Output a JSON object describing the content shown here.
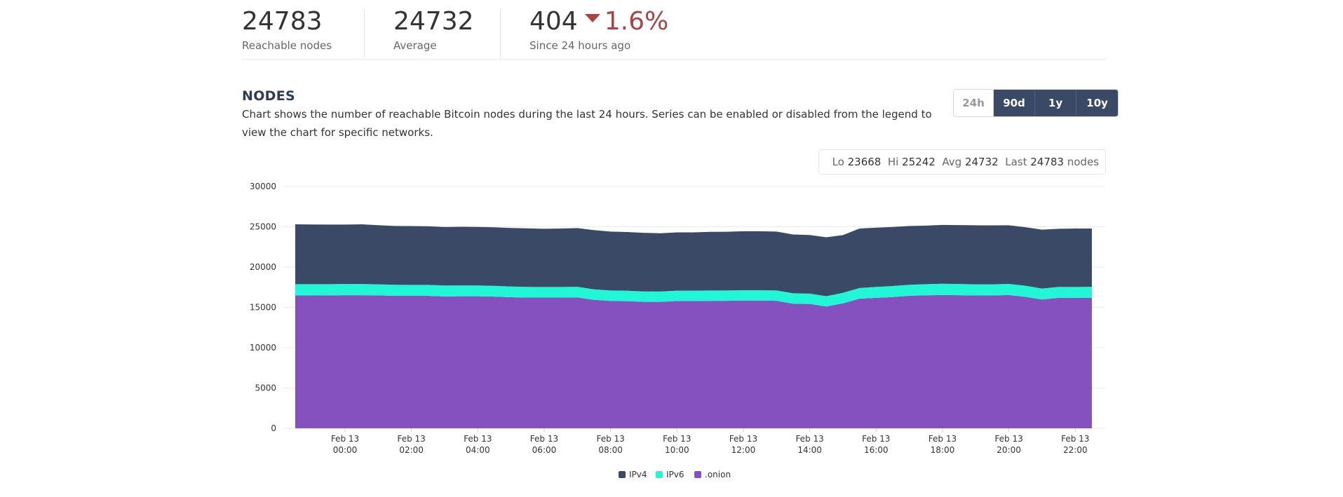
{
  "stats": {
    "reachable": {
      "value": "24783",
      "label": "Reachable nodes"
    },
    "average": {
      "value": "24732",
      "label": "Average"
    },
    "change": {
      "value": "404",
      "percent": "1.6%",
      "direction": "down",
      "label": "Since 24 hours ago"
    }
  },
  "nodes": {
    "title": "NODES",
    "description": "Chart shows the number of reachable Bitcoin nodes during the last 24 hours. Series can be enabled or disabled from the legend to view the chart for specific networks."
  },
  "ranges": [
    {
      "label": "24h",
      "active": false
    },
    {
      "label": "90d",
      "active": true
    },
    {
      "label": "1y",
      "active": true
    },
    {
      "label": "10y",
      "active": true
    }
  ],
  "summary": {
    "lo_label": "Lo",
    "lo": "23668",
    "hi_label": "Hi",
    "hi": "25242",
    "avg_label": "Avg",
    "avg": "24732",
    "last_label": "Last",
    "last": "24783",
    "unit": "nodes"
  },
  "colors": {
    "ipv4": "#3a4966",
    "ipv6": "#21f6d6",
    "onion": "#8551be",
    "trend_down": "#a94442",
    "grid": "#ebebeb"
  },
  "chart_data": {
    "type": "area",
    "stacked": true,
    "title": "",
    "xlabel": "",
    "ylabel": "",
    "ylim": [
      0,
      30000
    ],
    "yticks": [
      0,
      5000,
      10000,
      15000,
      20000,
      25000,
      30000
    ],
    "x_hours": [
      -1.5,
      -1,
      -0.5,
      0,
      0.5,
      1,
      1.5,
      2,
      2.5,
      3,
      3.5,
      4,
      4.5,
      5,
      5.5,
      6,
      6.5,
      7,
      7.5,
      8,
      8.5,
      9,
      9.5,
      10,
      10.5,
      11,
      11.5,
      12,
      12.5,
      13,
      13.5,
      14,
      14.5,
      15,
      15.5,
      16,
      16.5,
      17,
      17.5,
      18,
      18.5,
      19,
      19.5,
      20,
      20.5,
      21,
      21.5,
      22,
      22.5
    ],
    "xticks": [
      {
        "hour": 0,
        "line1": "Feb 13",
        "line2": "00:00"
      },
      {
        "hour": 2,
        "line1": "Feb 13",
        "line2": "02:00"
      },
      {
        "hour": 4,
        "line1": "Feb 13",
        "line2": "04:00"
      },
      {
        "hour": 6,
        "line1": "Feb 13",
        "line2": "06:00"
      },
      {
        "hour": 8,
        "line1": "Feb 13",
        "line2": "08:00"
      },
      {
        "hour": 10,
        "line1": "Feb 13",
        "line2": "10:00"
      },
      {
        "hour": 12,
        "line1": "Feb 13",
        "line2": "12:00"
      },
      {
        "hour": 14,
        "line1": "Feb 13",
        "line2": "14:00"
      },
      {
        "hour": 16,
        "line1": "Feb 13",
        "line2": "16:00"
      },
      {
        "hour": 18,
        "line1": "Feb 13",
        "line2": "18:00"
      },
      {
        "hour": 20,
        "line1": "Feb 13",
        "line2": "20:00"
      },
      {
        "hour": 22,
        "line1": "Feb 13",
        "line2": "22:00"
      }
    ],
    "series": [
      {
        "name": ".onion",
        "key": "onion",
        "values": [
          16480,
          16480,
          16490,
          16510,
          16510,
          16490,
          16430,
          16430,
          16430,
          16360,
          16380,
          16380,
          16340,
          16260,
          16220,
          16220,
          16220,
          16240,
          15930,
          15800,
          15770,
          15680,
          15680,
          15790,
          15790,
          15810,
          15820,
          15850,
          15850,
          15820,
          15460,
          15420,
          15110,
          15500,
          16080,
          16190,
          16280,
          16430,
          16500,
          16530,
          16510,
          16480,
          16480,
          16530,
          16300,
          15980,
          16180,
          16180,
          16200
        ]
      },
      {
        "name": "IPv6",
        "key": "ipv6",
        "values": [
          1400,
          1400,
          1390,
          1390,
          1390,
          1370,
          1370,
          1360,
          1360,
          1360,
          1340,
          1340,
          1330,
          1330,
          1320,
          1310,
          1310,
          1310,
          1310,
          1300,
          1300,
          1300,
          1290,
          1290,
          1290,
          1290,
          1280,
          1280,
          1280,
          1280,
          1290,
          1290,
          1280,
          1300,
          1320,
          1350,
          1370,
          1380,
          1380,
          1400,
          1390,
          1380,
          1380,
          1380,
          1380,
          1360,
          1360,
          1350,
          1350
        ]
      },
      {
        "name": "IPv4",
        "key": "ipv4",
        "values": [
          7420,
          7400,
          7390,
          7370,
          7400,
          7330,
          7300,
          7300,
          7280,
          7250,
          7280,
          7260,
          7270,
          7260,
          7260,
          7220,
          7250,
          7290,
          7350,
          7300,
          7280,
          7270,
          7220,
          7230,
          7230,
          7270,
          7280,
          7320,
          7320,
          7300,
          7290,
          7270,
          7300,
          7170,
          7380,
          7350,
          7330,
          7290,
          7260,
          7300,
          7310,
          7320,
          7310,
          7270,
          7270,
          7300,
          7210,
          7253,
          7233
        ]
      }
    ],
    "legend": [
      {
        "name": "IPv4",
        "key": "ipv4"
      },
      {
        "name": "IPv6",
        "key": "ipv6"
      },
      {
        "name": ".onion",
        "key": "onion"
      }
    ],
    "legend_position": "bottom-center",
    "grid": true
  }
}
